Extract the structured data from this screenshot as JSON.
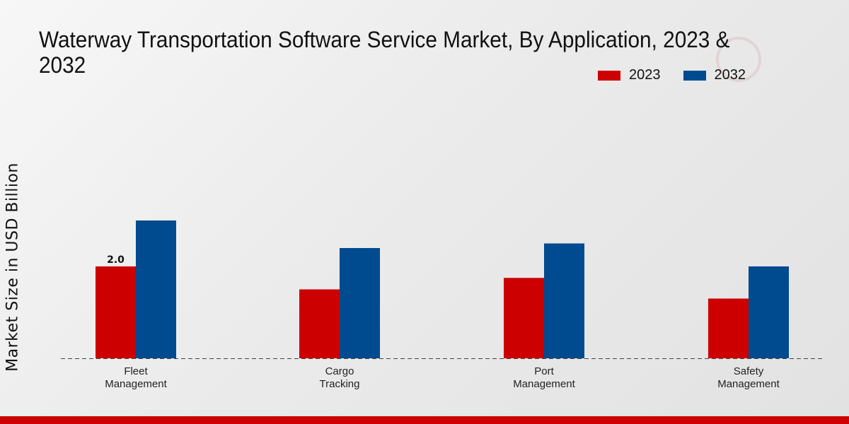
{
  "chart_data": {
    "type": "bar",
    "title": "Waterway Transportation Software Service Market, By Application, 2023 & 2032",
    "xlabel": "",
    "ylabel": "Market Size in USD Billion",
    "categories": [
      "Fleet Management",
      "Cargo Tracking",
      "Port Management",
      "Safety Management"
    ],
    "category_lines": [
      [
        "Fleet",
        "Management"
      ],
      [
        "Cargo",
        "Tracking"
      ],
      [
        "Port",
        "Management"
      ],
      [
        "Safety",
        "Management"
      ]
    ],
    "series": [
      {
        "name": "2023",
        "color": "#cc0000",
        "values": [
          2.0,
          1.5,
          1.75,
          1.3
        ]
      },
      {
        "name": "2032",
        "color": "#004a8f",
        "values": [
          3.0,
          2.4,
          2.5,
          2.0
        ]
      }
    ],
    "data_labels": [
      {
        "series": 0,
        "index": 0,
        "text": "2.0"
      }
    ],
    "ylim": [
      0,
      5.8
    ],
    "grid": false,
    "legend": "top-right"
  }
}
